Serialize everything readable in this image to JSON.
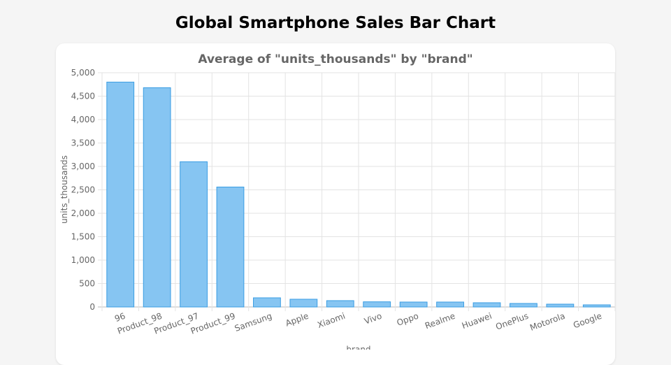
{
  "page_title": "Global Smartphone Sales Bar Chart",
  "chart_data": {
    "type": "bar",
    "title": "Average of \"units_thousands\" by \"brand\"",
    "xlabel": "brand",
    "ylabel": "units_thousands",
    "ylim": [
      0,
      5000
    ],
    "yticks": [
      0,
      500,
      1000,
      1500,
      2000,
      2500,
      3000,
      3500,
      4000,
      4500,
      5000
    ],
    "ytick_labels": [
      "0",
      "500",
      "1,000",
      "1,500",
      "2,000",
      "2,500",
      "3,000",
      "3,500",
      "4,000",
      "4,500",
      "5,000"
    ],
    "categories": [
      "96",
      "Product_98",
      "Product_97",
      "Product_99",
      "Samsung",
      "Apple",
      "Xiaomi",
      "Vivo",
      "Oppo",
      "Realme",
      "Huawei",
      "OnePlus",
      "Motorola",
      "Google"
    ],
    "values": [
      4800,
      4680,
      3100,
      2560,
      195,
      165,
      135,
      110,
      105,
      105,
      90,
      75,
      60,
      45
    ],
    "grid": true,
    "bar_color": "#86c5f2",
    "bar_border": "#3a9de3"
  }
}
